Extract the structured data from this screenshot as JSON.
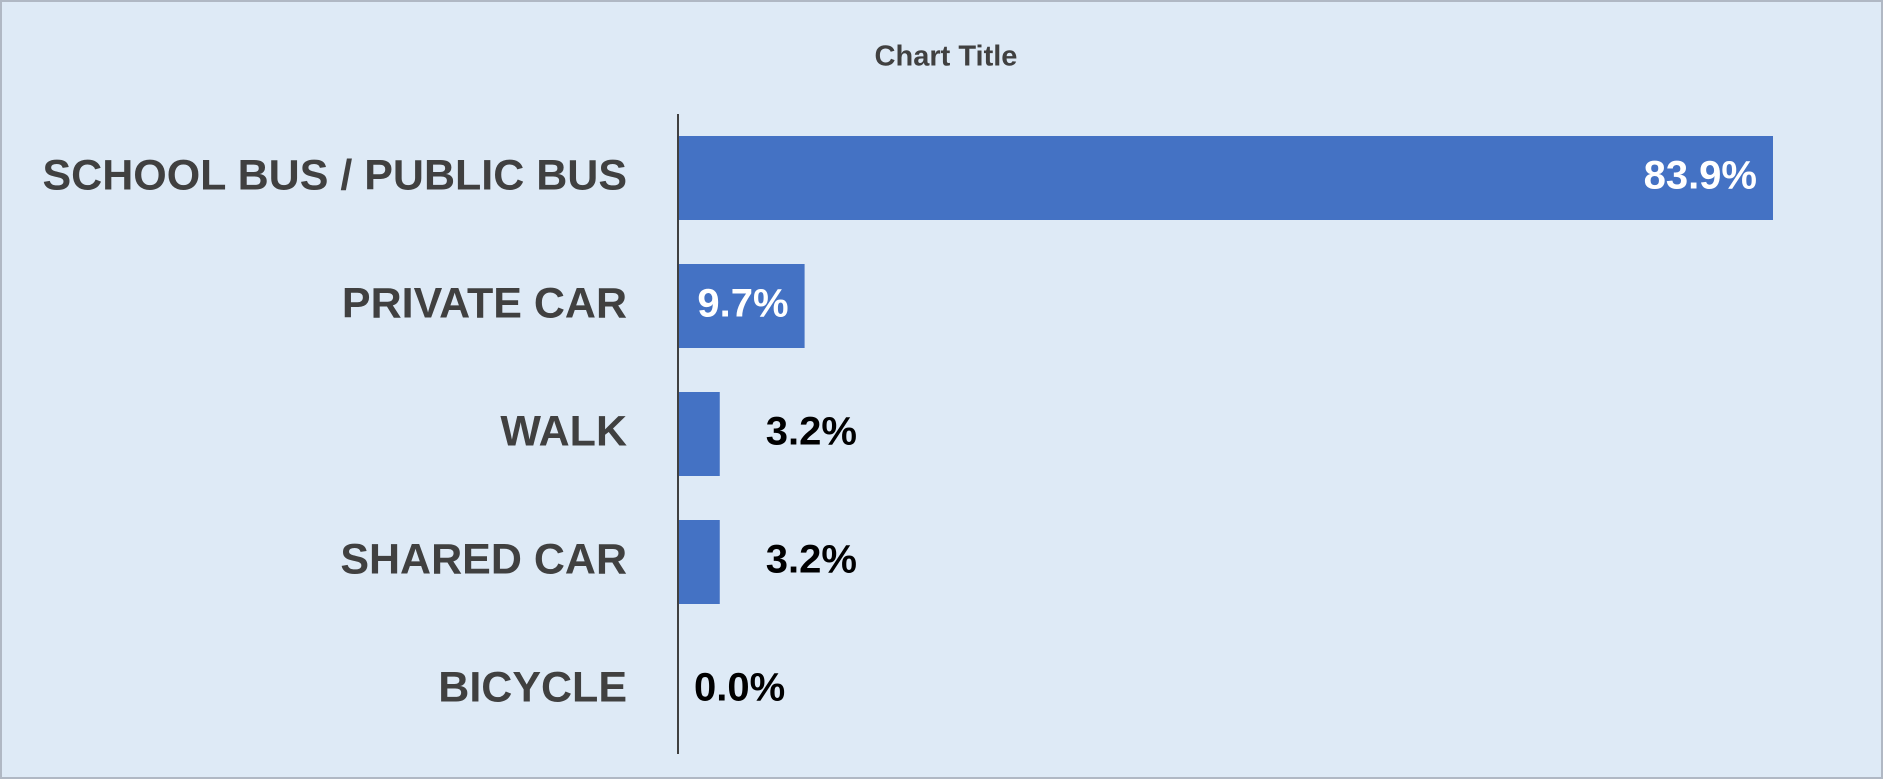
{
  "chart_data": {
    "type": "bar",
    "orientation": "horizontal",
    "title": "Chart Title",
    "categories": [
      "SCHOOL BUS / PUBLIC BUS",
      "PRIVATE CAR",
      "WALK",
      "SHARED CAR",
      "BICYCLE"
    ],
    "values": [
      83.9,
      9.7,
      3.2,
      3.2,
      0.0
    ],
    "value_labels": [
      "83.9%",
      "9.7%",
      "3.2%",
      "3.2%",
      "0.0%"
    ],
    "color": "#4472c4"
  }
}
